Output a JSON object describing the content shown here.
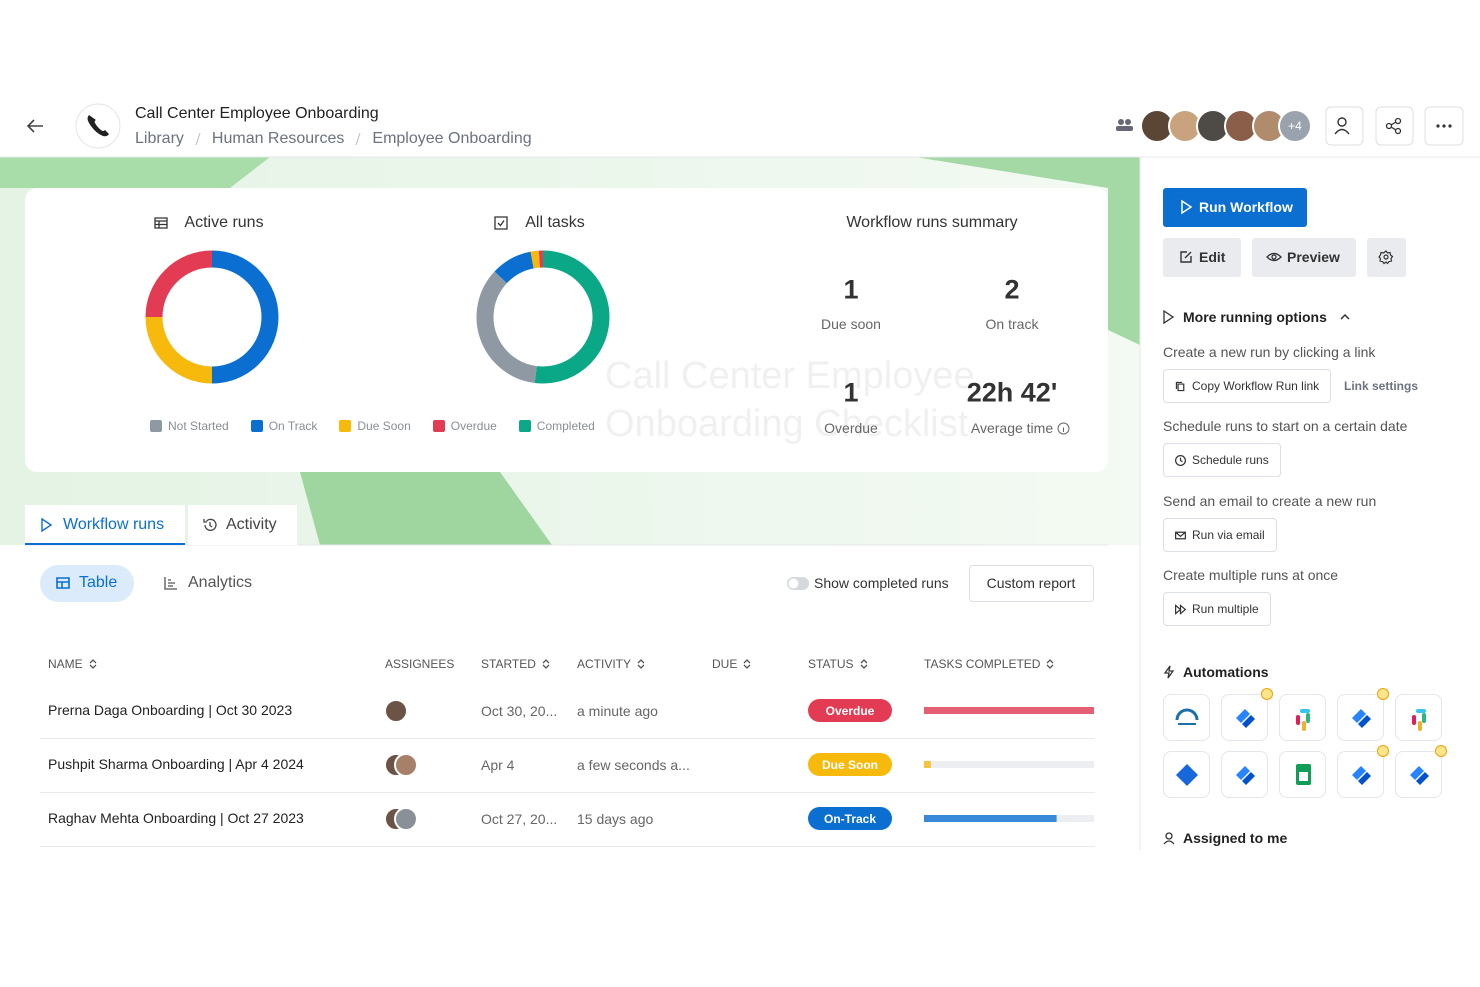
{
  "header": {
    "title": "Call Center Employee Onboarding",
    "breadcrumb": [
      "Library",
      "Human Resources",
      "Employee Onboarding"
    ],
    "more_members": "+4"
  },
  "legend": [
    {
      "name": "Not Started",
      "color": "#8e99a4"
    },
    {
      "name": "On Track",
      "color": "#0b6fd1"
    },
    {
      "name": "Due Soon",
      "color": "#f8b90d"
    },
    {
      "name": "Overdue",
      "color": "#e23b53"
    },
    {
      "name": "Completed",
      "color": "#0aa886"
    }
  ],
  "charts": [
    {
      "type": "donut",
      "title": "Active runs",
      "values": [
        0,
        2,
        1,
        1,
        0
      ]
    },
    {
      "type": "donut",
      "title": "All tasks",
      "values": [
        35,
        10,
        2,
        1,
        52
      ]
    }
  ],
  "summary": {
    "title": "Workflow runs summary",
    "stats": [
      {
        "value": 1,
        "label": "Due soon"
      },
      {
        "value": 2,
        "label": "On track"
      },
      {
        "value": 1,
        "label": "Overdue"
      },
      {
        "value": "22h 42'",
        "label": "Average time"
      }
    ]
  },
  "watermark": "Call Center Employee Onboarding Checklist",
  "tabs": [
    "Workflow runs",
    "Activity"
  ],
  "views": [
    "Table",
    "Analytics"
  ],
  "toggle": "Show completed runs",
  "report_button": "Custom report",
  "table": {
    "columns": [
      "NAME",
      "ASSIGNEES",
      "STARTED",
      "ACTIVITY",
      "DUE",
      "STATUS",
      "TASKS COMPLETED"
    ],
    "rows": [
      {
        "name": "Prerna Daga Onboarding | Oct 30 2023",
        "started": "Oct 30, 20...",
        "activity": "a minute ago",
        "status": "Overdue",
        "status_color": "#e23b53",
        "tasks_completed": 100
      },
      {
        "name": "Pushpit Sharma Onboarding | Apr 4 2024",
        "started": "Apr 4",
        "activity": "a few seconds a...",
        "status": "Due Soon",
        "status_color": "#f8b90d",
        "tasks_completed": 4
      },
      {
        "name": "Raghav Mehta Onboarding | Oct 27 2023",
        "started": "Oct 27, 20...",
        "activity": "15 days ago",
        "status": "On-Track",
        "status_color": "#0b6fd1",
        "tasks_completed": 78,
        "extra_assignees": "2"
      }
    ]
  },
  "sidebar": {
    "run": "Run Workflow",
    "edit": "Edit",
    "preview": "Preview",
    "more": "More running options",
    "options": [
      {
        "text": "Create a new run by clicking a link",
        "button": "Copy Workflow Run link",
        "link": "Link settings"
      },
      {
        "text": "Schedule runs to start on a certain date",
        "button": "Schedule runs"
      },
      {
        "text": "Send an email to create a new run",
        "button": "Run via email"
      },
      {
        "text": "Create multiple runs at once",
        "button": "Run multiple"
      }
    ],
    "automations": "Automations",
    "assigned": "Assigned to me"
  }
}
